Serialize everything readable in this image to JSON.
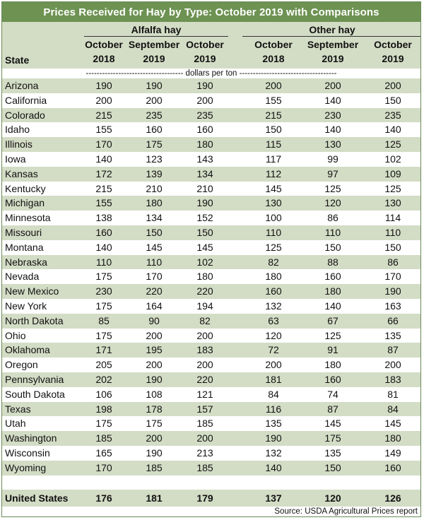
{
  "title": "Prices Received for Hay by Type: October 2019 with Comparisons",
  "groups": {
    "alfalfa": "Alfalfa hay",
    "other": "Other hay"
  },
  "columns": [
    {
      "line1": "October",
      "line2": "2018"
    },
    {
      "line1": "September",
      "line2": "2019"
    },
    {
      "line1": "October",
      "line2": "2019"
    },
    {
      "line1": "October",
      "line2": "2018"
    },
    {
      "line1": "September",
      "line2": "2019"
    },
    {
      "line1": "October",
      "line2": "2019"
    }
  ],
  "state_header": "State",
  "units": "------------------------------------ dollars per ton ------------------------------------",
  "rows": [
    {
      "state": "Arizona",
      "values": [
        "190",
        "190",
        "190",
        "200",
        "200",
        "200"
      ]
    },
    {
      "state": "California",
      "values": [
        "200",
        "200",
        "200",
        "155",
        "140",
        "150"
      ]
    },
    {
      "state": "Colorado",
      "values": [
        "215",
        "235",
        "235",
        "215",
        "230",
        "235"
      ]
    },
    {
      "state": "Idaho",
      "values": [
        "155",
        "160",
        "160",
        "150",
        "140",
        "140"
      ]
    },
    {
      "state": "Illinois",
      "values": [
        "170",
        "175",
        "180",
        "115",
        "130",
        "125"
      ]
    },
    {
      "state": "Iowa",
      "values": [
        "140",
        "123",
        "143",
        "117",
        "99",
        "102"
      ]
    },
    {
      "state": "Kansas",
      "values": [
        "172",
        "139",
        "134",
        "112",
        "97",
        "109"
      ]
    },
    {
      "state": "Kentucky",
      "values": [
        "215",
        "210",
        "210",
        "145",
        "125",
        "125"
      ]
    },
    {
      "state": "Michigan",
      "values": [
        "155",
        "180",
        "190",
        "130",
        "120",
        "130"
      ]
    },
    {
      "state": "Minnesota",
      "values": [
        "138",
        "134",
        "152",
        "100",
        "86",
        "114"
      ]
    },
    {
      "state": "Missouri",
      "values": [
        "160",
        "150",
        "150",
        "110",
        "110",
        "110"
      ]
    },
    {
      "state": "Montana",
      "values": [
        "140",
        "145",
        "145",
        "125",
        "150",
        "150"
      ]
    },
    {
      "state": "Nebraska",
      "values": [
        "110",
        "110",
        "102",
        "82",
        "88",
        "86"
      ]
    },
    {
      "state": "Nevada",
      "values": [
        "175",
        "170",
        "180",
        "180",
        "160",
        "170"
      ]
    },
    {
      "state": "New Mexico",
      "values": [
        "230",
        "220",
        "220",
        "160",
        "180",
        "190"
      ]
    },
    {
      "state": "New York",
      "values": [
        "175",
        "164",
        "194",
        "132",
        "140",
        "163"
      ]
    },
    {
      "state": "North Dakota",
      "values": [
        "85",
        "90",
        "82",
        "63",
        "67",
        "66"
      ]
    },
    {
      "state": "Ohio",
      "values": [
        "175",
        "200",
        "200",
        "120",
        "125",
        "135"
      ]
    },
    {
      "state": "Oklahoma",
      "values": [
        "171",
        "195",
        "183",
        "72",
        "91",
        "87"
      ]
    },
    {
      "state": "Oregon",
      "values": [
        "205",
        "200",
        "200",
        "200",
        "180",
        "200"
      ]
    },
    {
      "state": "Pennsylvania",
      "values": [
        "202",
        "190",
        "220",
        "181",
        "160",
        "183"
      ]
    },
    {
      "state": "South Dakota",
      "values": [
        "106",
        "108",
        "121",
        "84",
        "74",
        "81"
      ]
    },
    {
      "state": "Texas",
      "values": [
        "198",
        "178",
        "157",
        "116",
        "87",
        "84"
      ]
    },
    {
      "state": "Utah",
      "values": [
        "175",
        "175",
        "185",
        "135",
        "145",
        "145"
      ]
    },
    {
      "state": "Washington",
      "values": [
        "185",
        "200",
        "200",
        "190",
        "175",
        "180"
      ]
    },
    {
      "state": "Wisconsin",
      "values": [
        "165",
        "190",
        "213",
        "132",
        "135",
        "149"
      ]
    },
    {
      "state": "Wyoming",
      "values": [
        "170",
        "185",
        "185",
        "140",
        "150",
        "160"
      ]
    }
  ],
  "total": {
    "state": "United States",
    "values": [
      "176",
      "181",
      "179",
      "137",
      "120",
      "126"
    ]
  },
  "source": "Source: USDA Agricultural Prices report",
  "colors": {
    "title_bg": "#6d9252",
    "shade": "#d3dcc5",
    "border": "#6a8a55"
  }
}
